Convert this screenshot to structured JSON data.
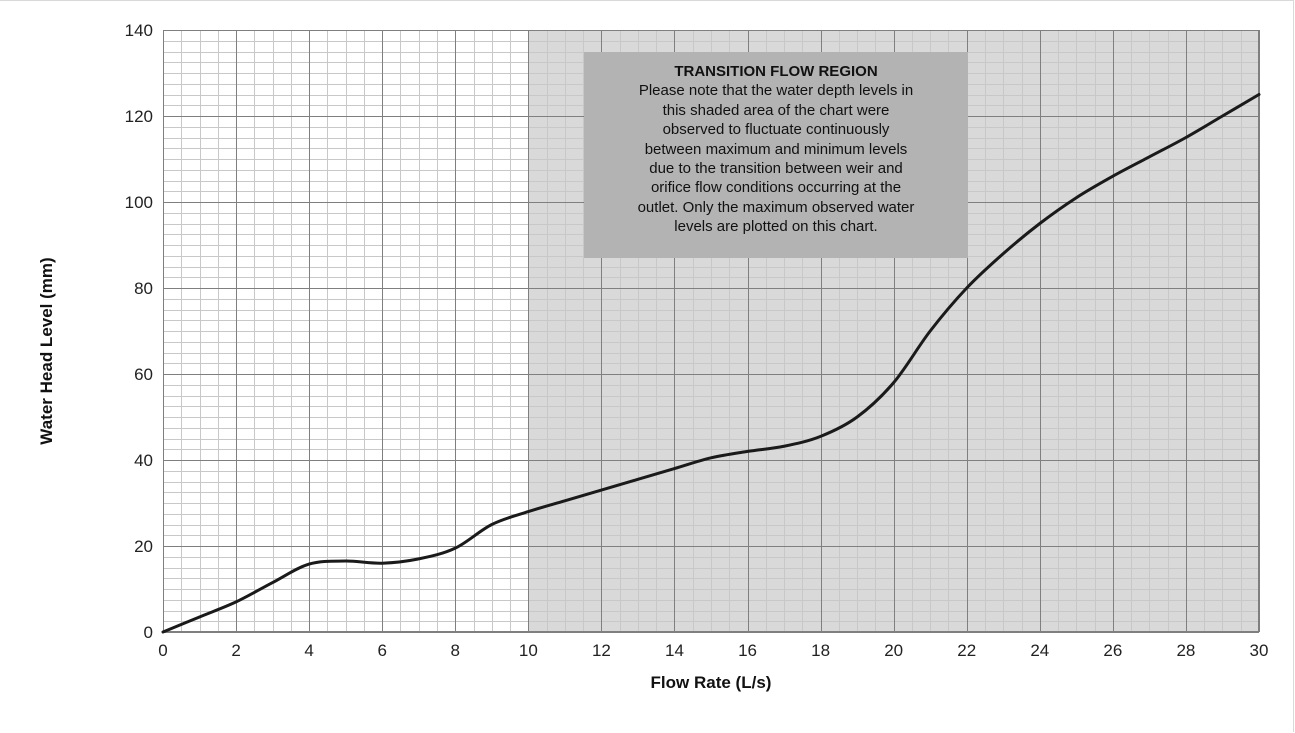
{
  "chart_data": {
    "type": "line",
    "xlabel": "Flow Rate (L/s)",
    "ylabel": "Water Head Level (mm)",
    "xlim": [
      0,
      30
    ],
    "ylim": [
      0,
      140
    ],
    "x_ticks": [
      0,
      2,
      4,
      6,
      8,
      10,
      12,
      14,
      16,
      18,
      20,
      22,
      24,
      26,
      28,
      30
    ],
    "y_ticks": [
      0,
      20,
      40,
      60,
      80,
      100,
      120,
      140
    ],
    "grid": "major and minor",
    "series": [
      {
        "x": [
          0,
          1,
          2,
          3,
          4,
          5,
          6,
          7,
          8,
          9,
          10,
          11,
          12,
          13,
          14,
          15,
          16,
          17,
          18,
          19,
          20,
          21,
          22,
          23,
          24,
          25,
          26,
          27,
          28,
          29,
          30
        ],
        "y": [
          0,
          3.5,
          7,
          11.5,
          15.8,
          16.5,
          16,
          17,
          19.5,
          25,
          28,
          30.5,
          33,
          35.5,
          38,
          40.5,
          42,
          43.2,
          45.5,
          50,
          58,
          70,
          80,
          88,
          95,
          101,
          106,
          110.5,
          115,
          120,
          125
        ]
      }
    ],
    "shaded_region": {
      "x_range": [
        10,
        30
      ],
      "color": "#d9d9d9"
    },
    "annotation": {
      "title": "TRANSITION FLOW REGION",
      "lines": [
        "Please note that the water depth levels in",
        "this shaded area of the chart were",
        "observed to fluctuate continuously",
        "between maximum and minimum levels",
        "due to the transition between weir and",
        "orifice flow conditions occurring at the",
        "outlet. Only the maximum observed water",
        "levels are plotted on this chart."
      ]
    }
  },
  "colors": {
    "shade": "#d9d9d9",
    "note_box": "#b3b3b3",
    "line": "#1a1a1a",
    "major_grid": "#7f7f7f",
    "minor_grid": "#c8c8c8"
  }
}
